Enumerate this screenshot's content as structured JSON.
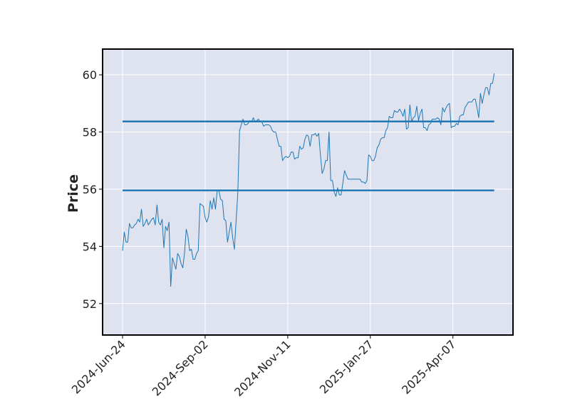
{
  "chart_data": {
    "type": "line",
    "title": "",
    "xlabel": "",
    "ylabel": "Price",
    "grid": true,
    "x_ticks": [
      "2024-Jun-24",
      "2024-Sep-02",
      "2024-Nov-11",
      "2025-Jan-27",
      "2025-Apr-07"
    ],
    "y_ticks": [
      52,
      54,
      56,
      58,
      60
    ],
    "ylim": [
      50.9,
      60.9
    ],
    "colors": {
      "background": "#dee3ef",
      "grid": "#ffffff",
      "series": "#1f77b4",
      "frame": "#000000"
    },
    "horizontal_lines": [
      {
        "value": 58.37,
        "color": "#1f77b4"
      },
      {
        "value": 55.96,
        "color": "#1f77b4"
      }
    ],
    "series": [
      {
        "color": "#1f77b4",
        "points": [
          [
            0,
            53.85
          ],
          [
            1,
            54.5
          ],
          [
            2,
            54.15
          ],
          [
            3,
            54.15
          ],
          [
            4,
            54.8
          ],
          [
            5,
            54.65
          ],
          [
            6,
            54.65
          ],
          [
            7,
            54.75
          ],
          [
            8,
            54.8
          ],
          [
            9,
            54.95
          ],
          [
            10,
            54.85
          ],
          [
            11,
            55.3
          ],
          [
            12,
            54.7
          ],
          [
            13,
            54.8
          ],
          [
            14,
            54.95
          ],
          [
            15,
            54.75
          ],
          [
            16,
            54.85
          ],
          [
            17,
            54.95
          ],
          [
            18,
            55.0
          ],
          [
            19,
            54.75
          ],
          [
            20,
            55.45
          ],
          [
            21,
            54.85
          ],
          [
            22,
            54.75
          ],
          [
            23,
            54.95
          ],
          [
            24,
            53.95
          ],
          [
            25,
            54.7
          ],
          [
            26,
            54.55
          ],
          [
            27,
            54.85
          ],
          [
            28,
            52.6
          ],
          [
            29,
            53.6
          ],
          [
            30,
            53.4
          ],
          [
            31,
            53.2
          ],
          [
            32,
            53.75
          ],
          [
            33,
            53.65
          ],
          [
            34,
            53.4
          ],
          [
            35,
            53.25
          ],
          [
            36,
            53.75
          ],
          [
            37,
            54.6
          ],
          [
            38,
            54.35
          ],
          [
            39,
            53.85
          ],
          [
            40,
            53.9
          ],
          [
            41,
            53.55
          ],
          [
            42,
            53.55
          ],
          [
            43,
            53.75
          ],
          [
            44,
            53.85
          ],
          [
            45,
            55.5
          ],
          [
            46,
            55.45
          ],
          [
            47,
            55.4
          ],
          [
            48,
            55.0
          ],
          [
            49,
            54.85
          ],
          [
            50,
            55.05
          ],
          [
            51,
            55.6
          ],
          [
            52,
            55.3
          ],
          [
            53,
            55.7
          ],
          [
            54,
            55.3
          ],
          [
            55,
            55.95
          ],
          [
            56,
            55.95
          ],
          [
            57,
            55.65
          ],
          [
            58,
            55.6
          ],
          [
            59,
            54.95
          ],
          [
            60,
            54.9
          ],
          [
            61,
            54.15
          ],
          [
            62,
            54.5
          ],
          [
            63,
            54.85
          ],
          [
            64,
            54.3
          ],
          [
            65,
            53.9
          ],
          [
            66,
            54.9
          ],
          [
            67,
            55.9
          ],
          [
            68,
            58.05
          ],
          [
            69,
            58.25
          ],
          [
            70,
            58.45
          ],
          [
            71,
            58.25
          ],
          [
            72,
            58.25
          ],
          [
            73,
            58.3
          ],
          [
            74,
            58.4
          ],
          [
            75,
            58.35
          ],
          [
            76,
            58.5
          ],
          [
            77,
            58.35
          ],
          [
            78,
            58.4
          ],
          [
            79,
            58.45
          ],
          [
            80,
            58.35
          ],
          [
            81,
            58.35
          ],
          [
            82,
            58.2
          ],
          [
            83,
            58.25
          ],
          [
            84,
            58.25
          ],
          [
            85,
            58.25
          ],
          [
            86,
            58.2
          ],
          [
            87,
            58.05
          ],
          [
            88,
            58.0
          ],
          [
            89,
            58.0
          ],
          [
            90,
            57.75
          ],
          [
            91,
            57.5
          ],
          [
            92,
            57.5
          ],
          [
            93,
            57.0
          ],
          [
            94,
            57.1
          ],
          [
            95,
            57.15
          ],
          [
            96,
            57.1
          ],
          [
            97,
            57.15
          ],
          [
            98,
            57.3
          ],
          [
            99,
            57.3
          ],
          [
            100,
            57.05
          ],
          [
            101,
            57.1
          ],
          [
            102,
            57.1
          ],
          [
            103,
            57.5
          ],
          [
            104,
            57.4
          ],
          [
            105,
            57.45
          ],
          [
            106,
            57.75
          ],
          [
            107,
            57.9
          ],
          [
            108,
            57.85
          ],
          [
            109,
            57.5
          ],
          [
            110,
            57.9
          ],
          [
            111,
            57.9
          ],
          [
            112,
            57.95
          ],
          [
            113,
            57.85
          ],
          [
            114,
            57.95
          ],
          [
            115,
            57.2
          ],
          [
            116,
            56.55
          ],
          [
            117,
            56.7
          ],
          [
            118,
            57.0
          ],
          [
            119,
            57.0
          ],
          [
            120,
            58.0
          ],
          [
            121,
            56.3
          ],
          [
            122,
            56.3
          ],
          [
            123,
            55.9
          ],
          [
            124,
            55.75
          ],
          [
            125,
            56.05
          ],
          [
            126,
            55.8
          ],
          [
            127,
            55.8
          ],
          [
            128,
            56.2
          ],
          [
            129,
            56.65
          ],
          [
            130,
            56.5
          ],
          [
            131,
            56.35
          ],
          [
            132,
            56.35
          ],
          [
            133,
            56.35
          ],
          [
            134,
            56.35
          ],
          [
            135,
            56.35
          ],
          [
            136,
            56.35
          ],
          [
            137,
            56.35
          ],
          [
            138,
            56.35
          ],
          [
            139,
            56.25
          ],
          [
            140,
            56.25
          ],
          [
            141,
            56.2
          ],
          [
            142,
            56.3
          ],
          [
            143,
            57.2
          ],
          [
            144,
            57.15
          ],
          [
            145,
            57.0
          ],
          [
            146,
            57.0
          ],
          [
            147,
            57.15
          ],
          [
            148,
            57.45
          ],
          [
            149,
            57.55
          ],
          [
            150,
            57.75
          ],
          [
            151,
            57.8
          ],
          [
            152,
            57.8
          ],
          [
            153,
            58.05
          ],
          [
            154,
            58.15
          ],
          [
            155,
            58.55
          ],
          [
            156,
            58.5
          ],
          [
            157,
            58.5
          ],
          [
            158,
            58.75
          ],
          [
            159,
            58.7
          ],
          [
            160,
            58.7
          ],
          [
            161,
            58.8
          ],
          [
            162,
            58.7
          ],
          [
            163,
            58.55
          ],
          [
            164,
            58.8
          ],
          [
            165,
            58.1
          ],
          [
            166,
            58.15
          ],
          [
            167,
            58.95
          ],
          [
            168,
            58.35
          ],
          [
            169,
            58.5
          ],
          [
            170,
            58.55
          ],
          [
            171,
            58.9
          ],
          [
            172,
            58.4
          ],
          [
            173,
            58.65
          ],
          [
            174,
            58.8
          ],
          [
            175,
            58.15
          ],
          [
            176,
            58.15
          ],
          [
            177,
            58.05
          ],
          [
            178,
            58.25
          ],
          [
            179,
            58.3
          ],
          [
            180,
            58.45
          ],
          [
            181,
            58.45
          ],
          [
            182,
            58.45
          ],
          [
            183,
            58.5
          ],
          [
            184,
            58.45
          ],
          [
            185,
            58.25
          ],
          [
            186,
            58.85
          ],
          [
            187,
            58.7
          ],
          [
            188,
            58.85
          ],
          [
            189,
            58.95
          ],
          [
            190,
            59.0
          ],
          [
            191,
            58.15
          ],
          [
            192,
            58.2
          ],
          [
            193,
            58.2
          ],
          [
            194,
            58.3
          ],
          [
            195,
            58.25
          ],
          [
            196,
            58.55
          ],
          [
            197,
            58.6
          ],
          [
            198,
            58.6
          ],
          [
            199,
            58.85
          ],
          [
            200,
            58.95
          ],
          [
            201,
            59.05
          ],
          [
            202,
            59.05
          ],
          [
            203,
            59.05
          ],
          [
            204,
            59.15
          ],
          [
            205,
            59.15
          ],
          [
            206,
            58.85
          ],
          [
            207,
            58.5
          ],
          [
            208,
            59.35
          ],
          [
            209,
            59.0
          ],
          [
            210,
            59.3
          ],
          [
            211,
            59.55
          ],
          [
            212,
            59.55
          ],
          [
            213,
            59.3
          ],
          [
            214,
            59.7
          ],
          [
            215,
            59.7
          ],
          [
            216,
            60.05
          ]
        ]
      }
    ]
  }
}
